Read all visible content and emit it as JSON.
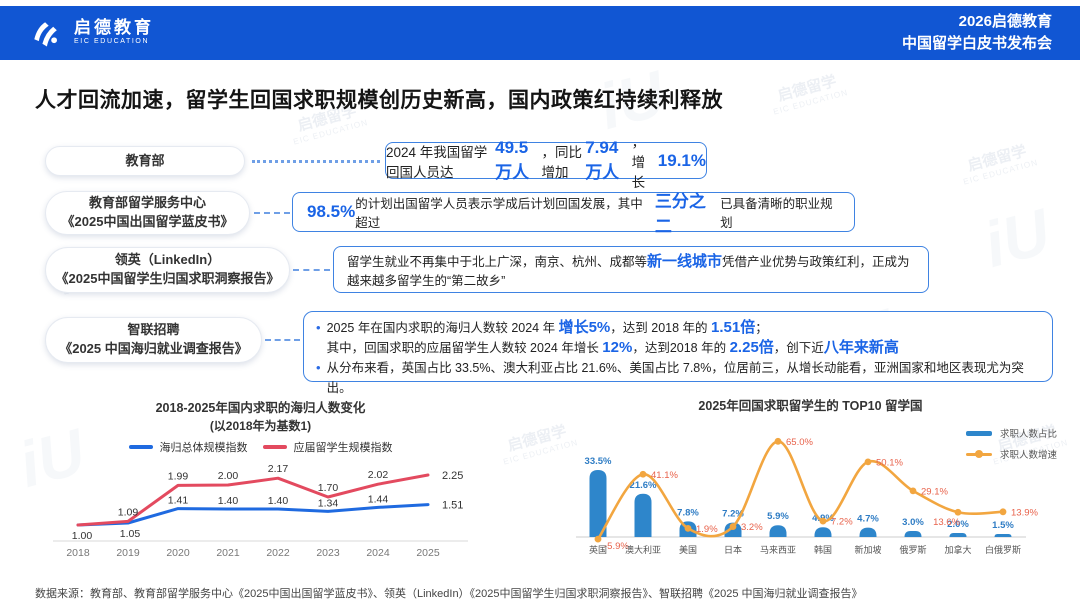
{
  "header": {
    "logo_cn": "启德教育",
    "logo_en": "EIC EDUCATION",
    "event_line1": "2026启德教育",
    "event_line2": "中国留学白皮书发布会"
  },
  "title": "人才回流加速，留学生回国求职规模创历史新高，国内政策红持续利释放",
  "watermark": {
    "cn": "启德留学",
    "en": "EIC EDUCATION",
    "monogram": "iU"
  },
  "colors": {
    "header_bg": "#1156d3",
    "accent_blue": "#1a64e6",
    "bar_blue": "#2e86cb",
    "growth_orange": "#f2a640",
    "growth_label_red": "#e8624b"
  },
  "rows": [
    {
      "source": [
        "教育部"
      ],
      "content": [
        {
          "t": "2024 年我国留学回国人员达"
        },
        {
          "t": "49.5 万人",
          "hl": true,
          "xl": true
        },
        {
          "t": "，同比增加 "
        },
        {
          "t": "7.94 万人",
          "hl": true,
          "xl": true
        },
        {
          "t": "，增长"
        },
        {
          "t": "19.1%",
          "hl": true,
          "xl": true
        }
      ]
    },
    {
      "source": [
        "教育部留学服务中心",
        "《2025中国出国留学蓝皮书》"
      ],
      "content": [
        {
          "t": "98.5%",
          "hl": true,
          "xl": true
        },
        {
          "t": "的计划出国留学人员表示学成后计划回国发展，其中超过"
        },
        {
          "t": "三分之二",
          "hl": true,
          "xl": true
        },
        {
          "t": "已具备清晰的职业规划"
        }
      ]
    },
    {
      "source": [
        "领英（LinkedIn）",
        "《2025中国留学生归国求职洞察报告》"
      ],
      "content": [
        {
          "t": "留学生就业不再集中于北上广深，南京、杭州、成都等"
        },
        {
          "t": "新一线城市",
          "hl": true,
          "big": true
        },
        {
          "t": "凭借产业优势与政策红利，正成为越来越多留学生的“第二故乡”"
        }
      ]
    },
    {
      "source": [
        "智联招聘",
        "《2025 中国海归就业调查报告》"
      ],
      "bullets": [
        [
          {
            "t": "2025 年在国内求职的海归人数较 2024 年 "
          },
          {
            "t": "增长5%",
            "hl": true,
            "big": true
          },
          {
            "t": "，达到 2018 年的 "
          },
          {
            "t": "1.51倍",
            "hl": true,
            "big": true
          },
          {
            "t": "；"
          },
          {
            "br": true
          },
          {
            "t": "其中，回国求职的应届留学生人数较 2024 年增长 "
          },
          {
            "t": "12%",
            "hl": true,
            "big": true
          },
          {
            "t": "，达到2018 年的 "
          },
          {
            "t": "2.25倍",
            "hl": true,
            "big": true
          },
          {
            "t": "，创下近"
          },
          {
            "t": "八年来新高",
            "hl": true,
            "big": true
          }
        ],
        [
          {
            "t": "从分布来看，英国占比 33.5%、澳大利亚占比 21.6%、美国占比 7.8%，位居前三，从增长动能看，亚洲国家和地区表现尤为突出。"
          }
        ]
      ]
    }
  ],
  "chart_data": [
    {
      "type": "line",
      "title": "2018-2025年国内求职的海归人数变化",
      "subtitle": "(以2018年为基数1)",
      "categories": [
        "2018",
        "2019",
        "2020",
        "2021",
        "2022",
        "2023",
        "2024",
        "2025"
      ],
      "series": [
        {
          "name": "海归总体规模指数",
          "color": "#1f6ae0",
          "values": [
            1.0,
            1.05,
            1.41,
            1.4,
            1.4,
            1.34,
            1.44,
            1.51
          ]
        },
        {
          "name": "应届留学生规模指数",
          "color": "#e34a5f",
          "values": [
            1.0,
            1.09,
            1.99,
            2.0,
            2.17,
            1.7,
            2.02,
            2.25
          ]
        }
      ],
      "ylim": [
        0.9,
        2.4
      ],
      "grid": false,
      "legend_position": "top"
    },
    {
      "type": "bar+line",
      "title": "2025年回国求职留学生的 TOP10 留学国",
      "categories": [
        "英国",
        "澳大利亚",
        "美国",
        "日本",
        "马来西亚",
        "韩国",
        "新加坡",
        "俄罗斯",
        "加拿大",
        "白俄罗斯"
      ],
      "series": [
        {
          "name": "求职人数占比",
          "type": "bar",
          "unit": "%",
          "color": "#2e86cb",
          "values": [
            33.5,
            21.6,
            7.8,
            7.2,
            5.9,
            4.9,
            4.7,
            3.0,
            2.0,
            1.5
          ]
        },
        {
          "name": "求职人数增速",
          "type": "line",
          "unit": "%",
          "color": "#f2a640",
          "label_color": "#e8624b",
          "values": [
            -5.9,
            41.1,
            1.9,
            3.2,
            65.0,
            7.2,
            50.1,
            29.1,
            13.6,
            13.9
          ]
        }
      ],
      "legend_position": "top-right"
    }
  ],
  "footer": {
    "text": "数据来源：教育部、教育部留学服务中心《2025中国出国留学蓝皮书》、领英（LinkedIn）《2025中国留学生归国求职洞察报告》、智联招聘《2025 中国海归就业调查报告》"
  }
}
